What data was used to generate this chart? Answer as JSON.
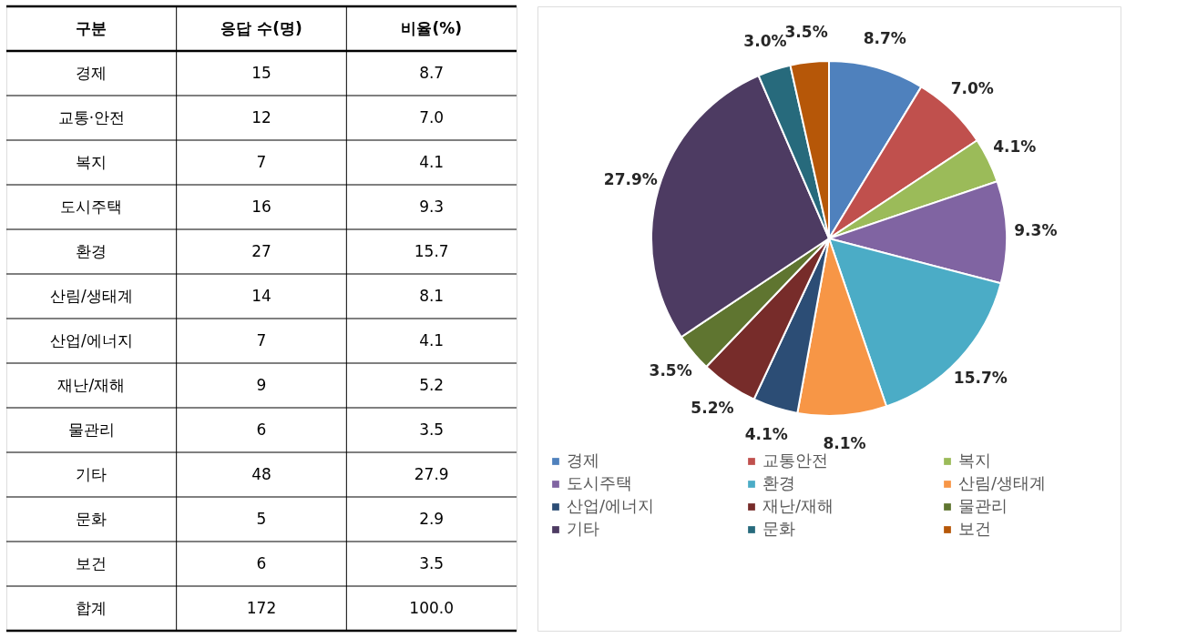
{
  "chart_data": [
    {
      "type": "other",
      "xlabel": "구분",
      "data_labels": true,
      "categories": [
        "경제",
        "교통·안전",
        "복지",
        "도시주택",
        "환경",
        "산림/생태계",
        "산업/에너지",
        "재난/재해",
        "물관리",
        "기타",
        "문화",
        "보건",
        "합계"
      ],
      "series": [
        {
          "name": "응답 수(명)",
          "values": [
            15,
            12,
            7,
            16,
            27,
            14,
            7,
            9,
            6,
            48,
            5,
            6,
            172
          ],
          "value_labels": [
            "15",
            "12",
            "7",
            "16",
            "27",
            "14",
            "7",
            "9",
            "6",
            "48",
            "5",
            "6",
            "172"
          ]
        },
        {
          "name": "비율(%)",
          "values": [
            8.7,
            7.0,
            4.1,
            9.3,
            15.7,
            8.1,
            4.1,
            5.2,
            3.5,
            27.9,
            2.9,
            3.5,
            100.0
          ],
          "value_labels": [
            "8.7",
            "7.0",
            "4.1",
            "9.3",
            "15.7",
            "8.1",
            "4.1",
            "5.2",
            "3.5",
            "27.9",
            "2.9",
            "3.5",
            "100.0"
          ]
        }
      ]
    },
    {
      "type": "pie",
      "categories": [
        "경제",
        "교통안전",
        "복지",
        "도시주택",
        "환경",
        "산림/생태계",
        "산업/에너지",
        "재난/재해",
        "물관리",
        "기타",
        "문화",
        "보건"
      ],
      "values": [
        8.7,
        7.0,
        4.1,
        9.3,
        15.7,
        8.1,
        4.1,
        5.2,
        3.5,
        27.9,
        3.0,
        3.5
      ],
      "value_labels": [
        "8.7%",
        "7.0%",
        "4.1%",
        "9.3%",
        "15.7%",
        "8.1%",
        "4.1%",
        "5.2%",
        "3.5%",
        "27.9%",
        "3.0%",
        "3.5%"
      ],
      "colors": [
        "#4f81bd",
        "#c0504d",
        "#9bbb59",
        "#8064a2",
        "#4bacc6",
        "#f79646",
        "#2c4d75",
        "#772c2a",
        "#5f7530",
        "#4d3b62",
        "#276a7c",
        "#b65708"
      ],
      "legend": "bottom"
    }
  ]
}
